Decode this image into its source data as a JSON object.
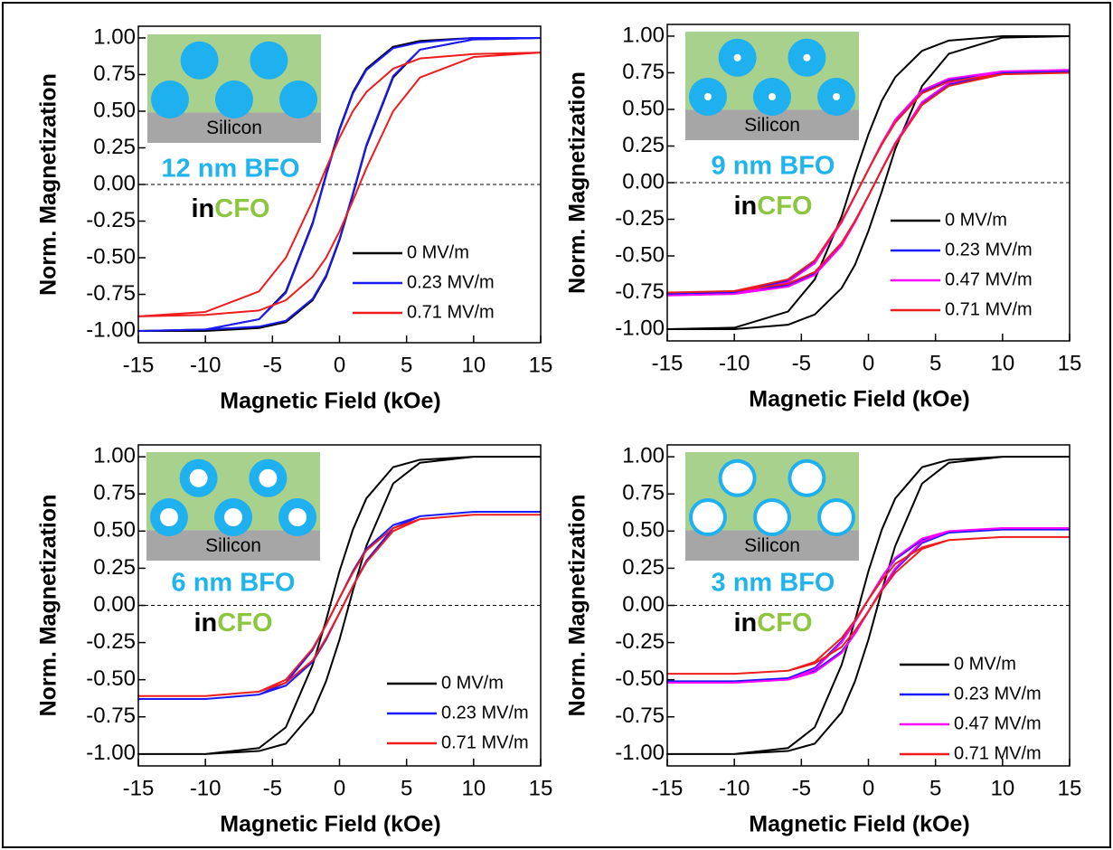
{
  "chart_data": [
    {
      "type": "line",
      "sample": "12 nm BFO",
      "matrix_prefix": "in",
      "matrix": "CFO",
      "substrate": "Silicon",
      "xlabel": "Magnetic Field (kOe)",
      "ylabel": "Norm. Magnetization",
      "x": [
        15,
        10,
        6,
        4,
        2,
        1,
        0,
        -1,
        -2,
        -4,
        -6,
        -10,
        -15,
        -10,
        -6,
        -4,
        -2,
        -1,
        0,
        1,
        2,
        4,
        6,
        10,
        15
      ],
      "xlim": [
        -15,
        15
      ],
      "xticks": [
        -15,
        -10,
        -5,
        0,
        5,
        10,
        15
      ],
      "ylim": [
        -1.08,
        1.08
      ],
      "yticks": [
        {
          "value": 1,
          "label": "1.00"
        },
        {
          "value": 0.75,
          "label": "0.75"
        },
        {
          "value": 0.5,
          "label": "0.50"
        },
        {
          "value": 0.25,
          "label": "0.25"
        },
        {
          "value": 0,
          "label": "0.00"
        },
        {
          "value": -0.25,
          "label": "-0.25"
        },
        {
          "value": -0.5,
          "label": "-0.50"
        },
        {
          "value": -0.75,
          "label": "-0.75"
        },
        {
          "value": -1,
          "label": "-1.00"
        }
      ],
      "zero_line": true,
      "legend": "lower right",
      "series": [
        {
          "name": "0 MV/m",
          "color": "#000000",
          "values": [
            1.0,
            1.0,
            0.98,
            0.94,
            0.79,
            0.63,
            0.38,
            0.07,
            -0.26,
            -0.73,
            -0.92,
            -0.99,
            -1.0,
            -1.0,
            -0.98,
            -0.94,
            -0.79,
            -0.63,
            -0.38,
            -0.07,
            0.26,
            0.73,
            0.92,
            0.99,
            1.0
          ]
        },
        {
          "name": "0.23 MV/m",
          "color": "#1a1aff",
          "values": [
            1.0,
            1.0,
            0.97,
            0.93,
            0.78,
            0.62,
            0.37,
            0.06,
            -0.27,
            -0.74,
            -0.92,
            -0.99,
            -1.0,
            -0.99,
            -0.97,
            -0.93,
            -0.78,
            -0.62,
            -0.37,
            -0.06,
            0.27,
            0.74,
            0.92,
            0.99,
            1.0
          ]
        },
        {
          "name": "0.71 MV/m",
          "color": "#ee1c1c",
          "values": [
            0.9,
            0.89,
            0.86,
            0.79,
            0.63,
            0.5,
            0.32,
            0.11,
            -0.11,
            -0.5,
            -0.73,
            -0.87,
            -0.9,
            -0.89,
            -0.86,
            -0.79,
            -0.63,
            -0.5,
            -0.32,
            -0.11,
            0.11,
            0.5,
            0.73,
            0.87,
            0.9
          ]
        }
      ]
    },
    {
      "type": "line",
      "sample": "9 nm BFO",
      "matrix_prefix": "in",
      "matrix": "CFO",
      "substrate": "Silicon",
      "xlabel": "Magnetic Field (kOe)",
      "ylabel": "Norm. Magnetization",
      "x": [
        15,
        10,
        6,
        4,
        2,
        1,
        0,
        -1,
        -2,
        -4,
        -6,
        -10,
        -15,
        -10,
        -6,
        -4,
        -2,
        -1,
        0,
        1,
        2,
        4,
        6,
        10,
        15
      ],
      "xlim": [
        -15,
        15
      ],
      "xticks": [
        -15,
        -10,
        -5,
        0,
        5,
        10,
        15
      ],
      "ylim": [
        -1.08,
        1.08
      ],
      "yticks": [
        {
          "value": 1,
          "label": "1.00"
        },
        {
          "value": 0.75,
          "label": "0.75"
        },
        {
          "value": 0.5,
          "label": "0.50"
        },
        {
          "value": 0.25,
          "label": "0.25"
        },
        {
          "value": 0,
          "label": "0.00"
        },
        {
          "value": -0.25,
          "label": "-0.25"
        },
        {
          "value": -0.5,
          "label": "-0.50"
        },
        {
          "value": -0.75,
          "label": "-0.75"
        },
        {
          "value": -1,
          "label": "-1.00"
        }
      ],
      "zero_line": true,
      "legend": "lower right",
      "series": [
        {
          "name": "0 MV/m",
          "color": "#000000",
          "values": [
            1.0,
            1.0,
            0.97,
            0.9,
            0.72,
            0.56,
            0.33,
            0.06,
            -0.23,
            -0.66,
            -0.88,
            -0.99,
            -1.0,
            -1.0,
            -0.97,
            -0.9,
            -0.72,
            -0.56,
            -0.33,
            -0.06,
            0.23,
            0.66,
            0.88,
            0.99,
            1.0
          ]
        },
        {
          "name": "0.23 MV/m",
          "color": "#1a1aff",
          "values": [
            0.76,
            0.75,
            0.7,
            0.62,
            0.42,
            0.27,
            0.09,
            -0.09,
            -0.27,
            -0.54,
            -0.67,
            -0.75,
            -0.76,
            -0.75,
            -0.7,
            -0.62,
            -0.42,
            -0.27,
            -0.09,
            0.09,
            0.27,
            0.54,
            0.67,
            0.75,
            0.76
          ]
        },
        {
          "name": "0.47 MV/m",
          "color": "#ff00ff",
          "values": [
            0.77,
            0.76,
            0.71,
            0.63,
            0.43,
            0.27,
            0.09,
            -0.09,
            -0.27,
            -0.55,
            -0.68,
            -0.76,
            -0.77,
            -0.76,
            -0.71,
            -0.63,
            -0.43,
            -0.27,
            -0.09,
            0.09,
            0.27,
            0.55,
            0.68,
            0.76,
            0.77
          ]
        },
        {
          "name": "0.71 MV/m",
          "color": "#ee1c1c",
          "values": [
            0.75,
            0.74,
            0.69,
            0.61,
            0.41,
            0.26,
            0.09,
            -0.09,
            -0.26,
            -0.53,
            -0.66,
            -0.74,
            -0.75,
            -0.74,
            -0.69,
            -0.61,
            -0.41,
            -0.26,
            -0.09,
            0.09,
            0.26,
            0.53,
            0.66,
            0.74,
            0.75
          ]
        }
      ]
    },
    {
      "type": "line",
      "sample": "6 nm BFO",
      "matrix_prefix": "in",
      "matrix": "CFO",
      "substrate": "Silicon",
      "xlabel": "Magnetic Field (kOe)",
      "ylabel": "Norm. Magnetization",
      "x": [
        15,
        10,
        6,
        4,
        2,
        1,
        0,
        -1,
        -2,
        -4,
        -6,
        -10,
        -15,
        -10,
        -6,
        -4,
        -2,
        -1,
        0,
        1,
        2,
        4,
        6,
        10,
        15
      ],
      "xlim": [
        -15,
        15
      ],
      "xticks": [
        -15,
        -10,
        -5,
        0,
        5,
        10,
        15
      ],
      "ylim": [
        -1.08,
        1.08
      ],
      "yticks": [
        {
          "value": 1,
          "label": "1.00"
        },
        {
          "value": 0.75,
          "label": "0.75"
        },
        {
          "value": 0.5,
          "label": "0.50"
        },
        {
          "value": 0.25,
          "label": "0.25"
        },
        {
          "value": 0,
          "label": "0.00"
        },
        {
          "value": -0.25,
          "label": "-0.25"
        },
        {
          "value": -0.5,
          "label": "-0.50"
        },
        {
          "value": -0.75,
          "label": "-0.75"
        },
        {
          "value": -1,
          "label": "-1.00"
        }
      ],
      "zero_line": true,
      "legend": "lower right",
      "series": [
        {
          "name": "0 MV/m",
          "color": "#000000",
          "values": [
            1.0,
            1.0,
            0.98,
            0.93,
            0.72,
            0.51,
            0.23,
            -0.1,
            -0.4,
            -0.82,
            -0.96,
            -1.0,
            -1.0,
            -1.0,
            -0.98,
            -0.93,
            -0.72,
            -0.51,
            -0.23,
            0.1,
            0.4,
            0.82,
            0.96,
            1.0,
            1.0
          ]
        },
        {
          "name": "0.23 MV/m",
          "color": "#1a1aff",
          "values": [
            0.63,
            0.63,
            0.6,
            0.54,
            0.38,
            0.23,
            0.05,
            -0.13,
            -0.3,
            -0.52,
            -0.6,
            -0.63,
            -0.63,
            -0.63,
            -0.6,
            -0.54,
            -0.38,
            -0.23,
            -0.05,
            0.13,
            0.3,
            0.52,
            0.6,
            0.63,
            0.63
          ]
        },
        {
          "name": "0.71 MV/m",
          "color": "#ee1c1c",
          "values": [
            0.61,
            0.61,
            0.58,
            0.52,
            0.37,
            0.22,
            0.05,
            -0.13,
            -0.29,
            -0.5,
            -0.58,
            -0.61,
            -0.61,
            -0.61,
            -0.58,
            -0.52,
            -0.37,
            -0.22,
            -0.05,
            0.13,
            0.29,
            0.5,
            0.58,
            0.61,
            0.61
          ]
        }
      ]
    },
    {
      "type": "line",
      "sample": "3 nm BFO",
      "matrix_prefix": "in",
      "matrix": "CFO",
      "substrate": "Silicon",
      "xlabel": "Magnetic Field (kOe)",
      "ylabel": "Norm. Magnetization",
      "x": [
        15,
        10,
        6,
        4,
        2,
        1,
        0,
        -1,
        -2,
        -4,
        -6,
        -10,
        -15,
        -10,
        -6,
        -4,
        -2,
        -1,
        0,
        1,
        2,
        4,
        6,
        10,
        15
      ],
      "xlim": [
        -15,
        15
      ],
      "xticks": [
        -15,
        -10,
        -5,
        0,
        5,
        10,
        15
      ],
      "ylim": [
        -1.08,
        1.08
      ],
      "yticks": [
        {
          "value": 1,
          "label": "1.00"
        },
        {
          "value": 0.75,
          "label": "0.75"
        },
        {
          "value": 0.5,
          "label": "0.50"
        },
        {
          "value": 0.25,
          "label": "0.25"
        },
        {
          "value": 0,
          "label": "0.00"
        },
        {
          "value": -0.25,
          "label": "-0.25"
        },
        {
          "value": -0.5,
          "label": "-0.50"
        },
        {
          "value": -0.75,
          "label": "-0.75"
        },
        {
          "value": -1,
          "label": "-1.00"
        }
      ],
      "zero_line": true,
      "legend": "lower right",
      "series": [
        {
          "name": "0 MV/m",
          "color": "#000000",
          "values": [
            1.0,
            1.0,
            0.98,
            0.93,
            0.72,
            0.51,
            0.23,
            -0.1,
            -0.4,
            -0.82,
            -0.96,
            -1.0,
            -1.0,
            -1.0,
            -0.98,
            -0.93,
            -0.72,
            -0.51,
            -0.23,
            0.1,
            0.4,
            0.82,
            0.96,
            1.0,
            1.0
          ]
        },
        {
          "name": "0.23 MV/m",
          "color": "#1a1aff",
          "values": [
            0.51,
            0.51,
            0.49,
            0.44,
            0.31,
            0.19,
            0.04,
            -0.11,
            -0.24,
            -0.42,
            -0.49,
            -0.51,
            -0.51,
            -0.51,
            -0.49,
            -0.44,
            -0.31,
            -0.19,
            -0.04,
            0.11,
            0.24,
            0.42,
            0.49,
            0.51,
            0.51
          ]
        },
        {
          "name": "0.47 MV/m",
          "color": "#ff00ff",
          "values": [
            0.52,
            0.52,
            0.5,
            0.45,
            0.32,
            0.19,
            0.04,
            -0.11,
            -0.25,
            -0.43,
            -0.5,
            -0.52,
            -0.52,
            -0.52,
            -0.5,
            -0.45,
            -0.32,
            -0.19,
            -0.04,
            0.11,
            0.25,
            0.43,
            0.5,
            0.52,
            0.52
          ]
        },
        {
          "name": "0.71 MV/m",
          "color": "#ee1c1c",
          "values": [
            0.46,
            0.46,
            0.44,
            0.39,
            0.28,
            0.17,
            0.04,
            -0.1,
            -0.22,
            -0.38,
            -0.44,
            -0.46,
            -0.46,
            -0.46,
            -0.44,
            -0.39,
            -0.28,
            -0.17,
            -0.04,
            0.1,
            0.22,
            0.38,
            0.44,
            0.46,
            0.46
          ]
        }
      ]
    }
  ]
}
